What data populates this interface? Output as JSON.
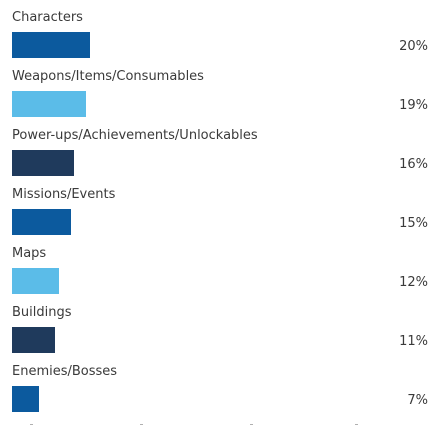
{
  "chart_data": {
    "type": "bar",
    "orientation": "horizontal",
    "categories": [
      "Characters",
      "Weapons/Items/Consumables",
      "Power-ups/Achievements/Unlockables",
      "Missions/Events",
      "Maps",
      "Buildings",
      "Enemies/Bosses"
    ],
    "values": [
      20,
      19,
      16,
      15,
      12,
      11,
      7
    ],
    "value_labels": [
      "20%",
      "19%",
      "16%",
      "15%",
      "12%",
      "11%",
      "7%"
    ],
    "colors": [
      "#0c5a9e",
      "#5bbce8",
      "#1f3a5c",
      "#0c5a9e",
      "#5bbce8",
      "#1f3a5c",
      "#0c5a9e"
    ],
    "unit": "%",
    "grid": false,
    "legend": "none"
  }
}
